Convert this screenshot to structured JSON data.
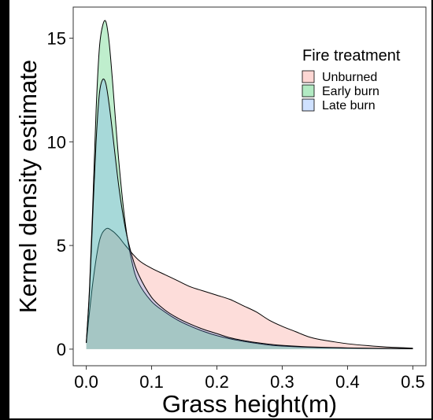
{
  "chart_data": {
    "type": "area",
    "title": "",
    "xlabel": "Grass height(m)",
    "ylabel": "Kernel density estimate",
    "xlim": [
      -0.02,
      0.52
    ],
    "ylim": [
      -0.8,
      16.5
    ],
    "xticks": [
      0.0,
      0.1,
      0.2,
      0.3,
      0.4,
      0.5
    ],
    "xtick_labels": [
      "0.0",
      "0.1",
      "0.2",
      "0.3",
      "0.4",
      "0.5"
    ],
    "yticks": [
      0,
      5,
      10,
      15
    ],
    "ytick_labels": [
      "0",
      "5",
      "10",
      "15"
    ],
    "grid": false,
    "legend": {
      "title": "Fire treatment",
      "position": "top-right"
    },
    "series": [
      {
        "name": "Unburned",
        "color": "#F8766D",
        "x": [
          0.0,
          0.01,
          0.02,
          0.03,
          0.04,
          0.05,
          0.06,
          0.08,
          0.1,
          0.12,
          0.14,
          0.16,
          0.18,
          0.2,
          0.22,
          0.24,
          0.26,
          0.28,
          0.3,
          0.32,
          0.34,
          0.36,
          0.38,
          0.4,
          0.43,
          0.46,
          0.5
        ],
        "y": [
          0.3,
          3.2,
          5.2,
          5.8,
          5.7,
          5.4,
          5.0,
          4.3,
          3.9,
          3.6,
          3.3,
          3.0,
          2.8,
          2.6,
          2.4,
          2.1,
          1.8,
          1.4,
          1.1,
          0.85,
          0.6,
          0.45,
          0.35,
          0.26,
          0.17,
          0.1,
          0.05
        ]
      },
      {
        "name": "Early burn",
        "color": "#00BA38",
        "x": [
          0.0,
          0.005,
          0.01,
          0.015,
          0.02,
          0.025,
          0.03,
          0.035,
          0.04,
          0.05,
          0.06,
          0.07,
          0.08,
          0.1,
          0.12,
          0.14,
          0.16,
          0.18,
          0.2,
          0.22,
          0.24,
          0.26,
          0.28,
          0.3,
          0.35,
          0.4,
          0.45,
          0.5
        ],
        "y": [
          0.3,
          3.0,
          7.0,
          11.5,
          14.5,
          15.6,
          15.8,
          14.8,
          13.0,
          9.0,
          6.0,
          4.2,
          3.2,
          2.3,
          1.8,
          1.4,
          1.1,
          0.85,
          0.65,
          0.5,
          0.38,
          0.28,
          0.2,
          0.15,
          0.08,
          0.05,
          0.03,
          0.02
        ]
      },
      {
        "name": "Late burn",
        "color": "#619CFF",
        "x": [
          0.0,
          0.005,
          0.01,
          0.015,
          0.02,
          0.025,
          0.03,
          0.035,
          0.04,
          0.05,
          0.06,
          0.07,
          0.08,
          0.1,
          0.12,
          0.14,
          0.16,
          0.18,
          0.2,
          0.22,
          0.24,
          0.26,
          0.28,
          0.3,
          0.35,
          0.4,
          0.45,
          0.5
        ],
        "y": [
          0.3,
          2.8,
          6.5,
          10.0,
          12.3,
          13.0,
          12.8,
          11.8,
          10.5,
          7.8,
          5.8,
          4.5,
          3.6,
          2.5,
          1.9,
          1.5,
          1.2,
          0.95,
          0.75,
          0.55,
          0.42,
          0.32,
          0.24,
          0.18,
          0.1,
          0.06,
          0.04,
          0.02
        ]
      }
    ]
  }
}
